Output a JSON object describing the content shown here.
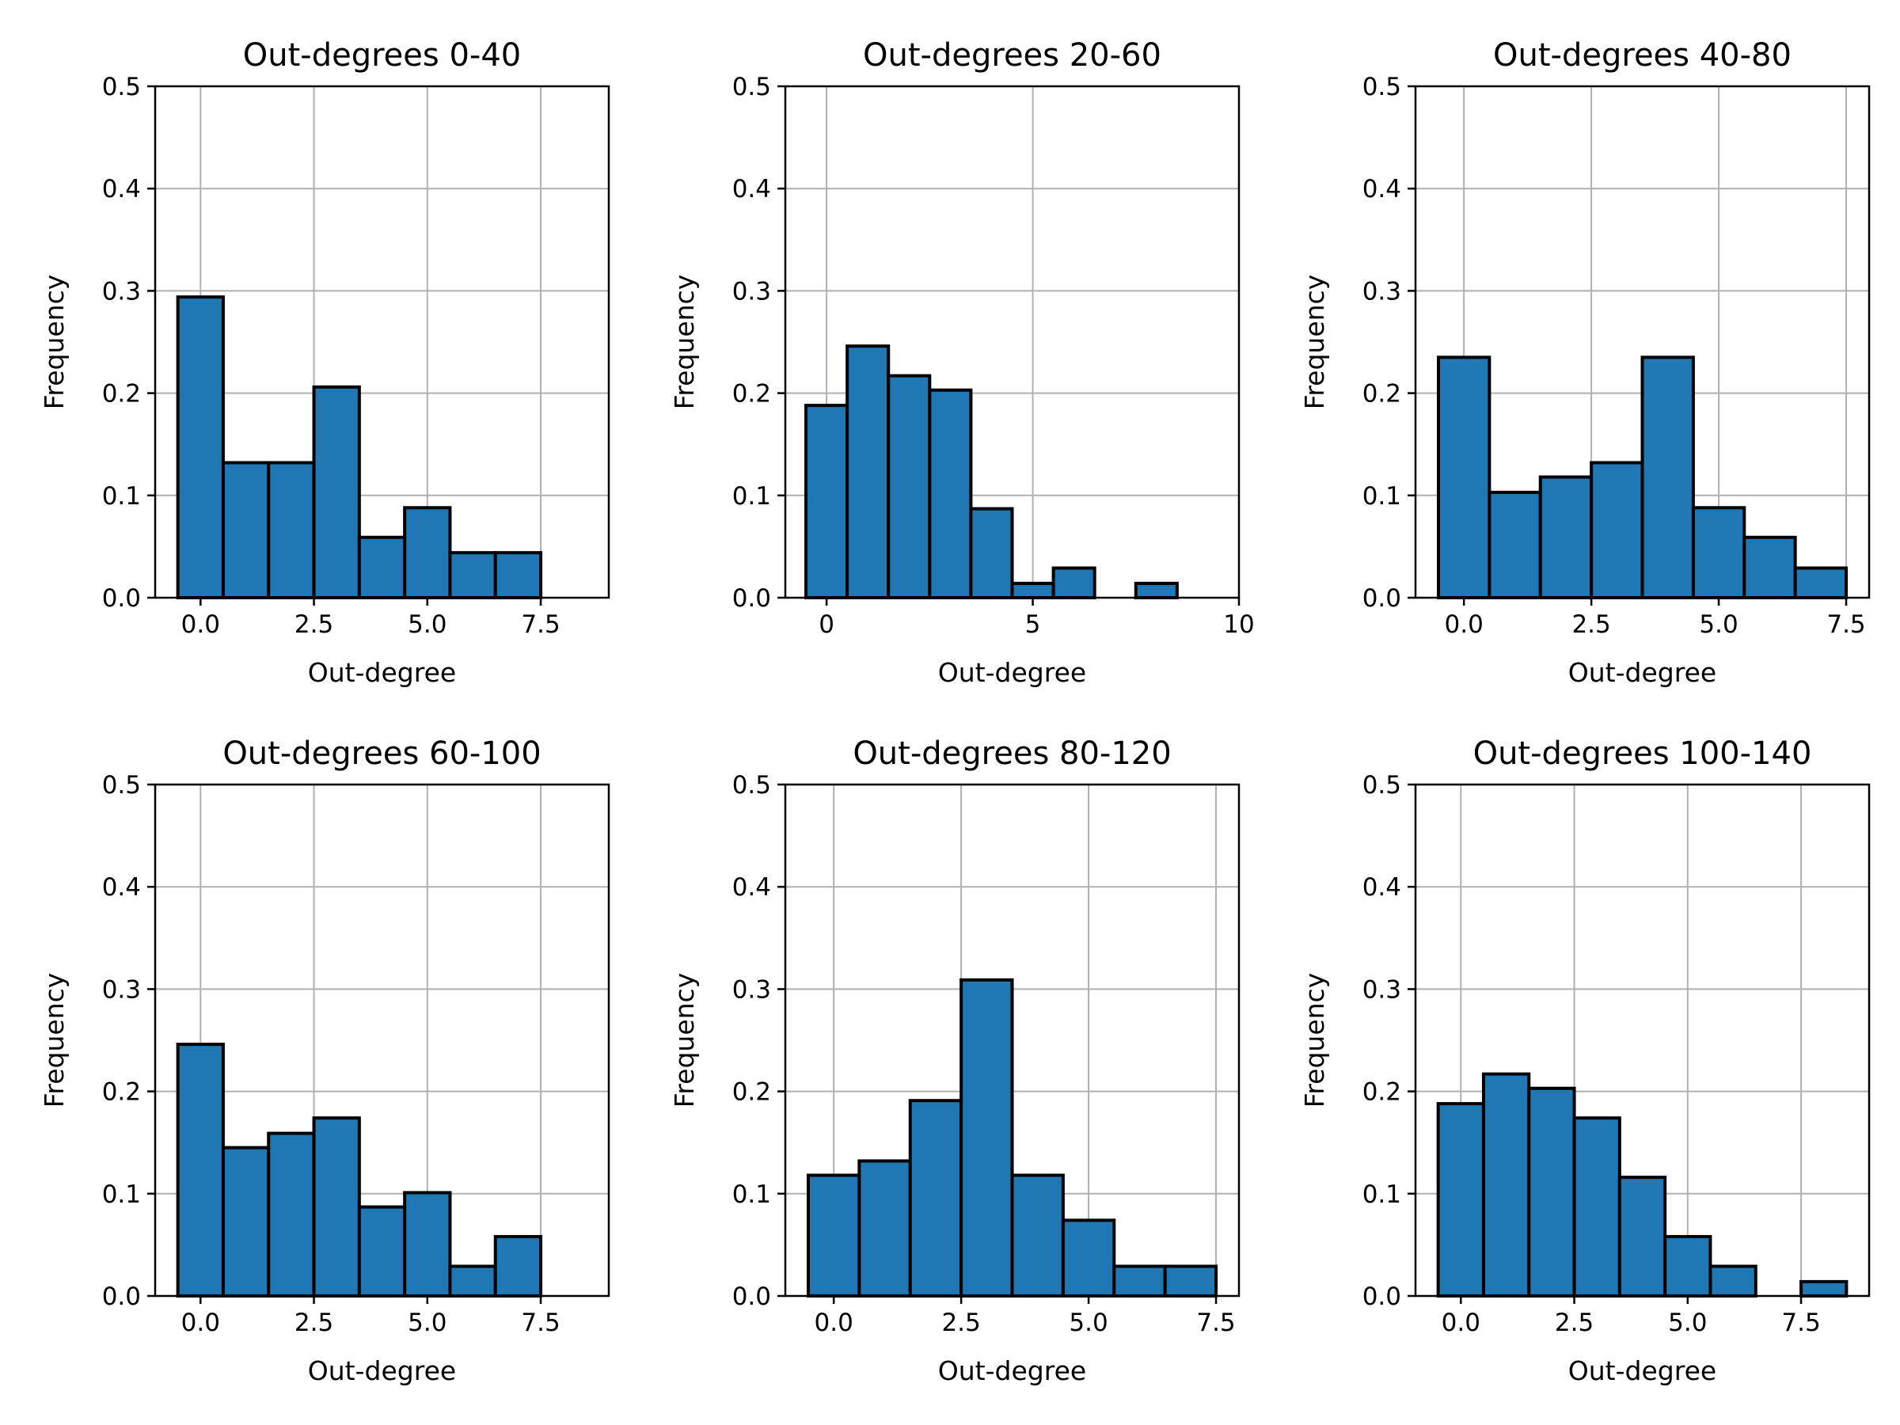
{
  "figure": {
    "bar_color": "#1f77b4",
    "edge_color": "#000000",
    "grid_color": "#b0b0b0"
  },
  "chart_data": [
    {
      "type": "bar",
      "title": "Out-degrees 0-40",
      "xlabel": "Out-degree",
      "ylabel": "Frequency",
      "xlim": [
        -1.0,
        9.0
      ],
      "ylim": [
        0,
        0.5
      ],
      "xticks": [
        0.0,
        2.5,
        5.0,
        7.5
      ],
      "xtick_labels": [
        "0.0",
        "2.5",
        "5.0",
        "7.5"
      ],
      "yticks": [
        0.0,
        0.1,
        0.2,
        0.3,
        0.4,
        0.5
      ],
      "ytick_labels": [
        "0.0",
        "0.1",
        "0.2",
        "0.3",
        "0.4",
        "0.5"
      ],
      "grid": true,
      "bin_edges": [
        -0.5,
        0.5,
        1.5,
        2.5,
        3.5,
        4.5,
        5.5,
        6.5,
        7.5,
        8.5
      ],
      "values": [
        0.294,
        0.132,
        0.132,
        0.206,
        0.059,
        0.088,
        0.044,
        0.044,
        0.0
      ]
    },
    {
      "type": "bar",
      "title": "Out-degrees 20-60",
      "xlabel": "Out-degree",
      "ylabel": "Frequency",
      "xlim": [
        -1.0,
        10.0
      ],
      "ylim": [
        0,
        0.5
      ],
      "xticks": [
        0,
        5,
        10
      ],
      "xtick_labels": [
        "0",
        "5",
        "10"
      ],
      "yticks": [
        0.0,
        0.1,
        0.2,
        0.3,
        0.4,
        0.5
      ],
      "ytick_labels": [
        "0.0",
        "0.1",
        "0.2",
        "0.3",
        "0.4",
        "0.5"
      ],
      "grid": true,
      "bin_edges": [
        -0.5,
        0.5,
        1.5,
        2.5,
        3.5,
        4.5,
        5.5,
        6.5,
        7.5,
        8.5,
        9.5
      ],
      "values": [
        0.188,
        0.246,
        0.217,
        0.203,
        0.087,
        0.014,
        0.029,
        0.0,
        0.014,
        0.0
      ]
    },
    {
      "type": "bar",
      "title": "Out-degrees 40-80",
      "xlabel": "Out-degree",
      "ylabel": "Frequency",
      "xlim": [
        -0.95,
        7.95
      ],
      "ylim": [
        0,
        0.5
      ],
      "xticks": [
        0.0,
        2.5,
        5.0,
        7.5
      ],
      "xtick_labels": [
        "0.0",
        "2.5",
        "5.0",
        "7.5"
      ],
      "yticks": [
        0.0,
        0.1,
        0.2,
        0.3,
        0.4,
        0.5
      ],
      "ytick_labels": [
        "0.0",
        "0.1",
        "0.2",
        "0.3",
        "0.4",
        "0.5"
      ],
      "grid": true,
      "bin_edges": [
        -0.5,
        0.5,
        1.5,
        2.5,
        3.5,
        4.5,
        5.5,
        6.5,
        7.5
      ],
      "values": [
        0.235,
        0.103,
        0.118,
        0.132,
        0.235,
        0.088,
        0.059,
        0.029
      ]
    },
    {
      "type": "bar",
      "title": "Out-degrees 60-100",
      "xlabel": "Out-degree",
      "ylabel": "Frequency",
      "xlim": [
        -1.0,
        9.0
      ],
      "ylim": [
        0,
        0.5
      ],
      "xticks": [
        0.0,
        2.5,
        5.0,
        7.5
      ],
      "xtick_labels": [
        "0.0",
        "2.5",
        "5.0",
        "7.5"
      ],
      "yticks": [
        0.0,
        0.1,
        0.2,
        0.3,
        0.4,
        0.5
      ],
      "ytick_labels": [
        "0.0",
        "0.1",
        "0.2",
        "0.3",
        "0.4",
        "0.5"
      ],
      "grid": true,
      "bin_edges": [
        -0.5,
        0.5,
        1.5,
        2.5,
        3.5,
        4.5,
        5.5,
        6.5,
        7.5,
        8.5
      ],
      "values": [
        0.246,
        0.145,
        0.159,
        0.174,
        0.087,
        0.101,
        0.029,
        0.058,
        0.0
      ]
    },
    {
      "type": "bar",
      "title": "Out-degrees 80-120",
      "xlabel": "Out-degree",
      "ylabel": "Frequency",
      "xlim": [
        -0.95,
        7.95
      ],
      "ylim": [
        0,
        0.5
      ],
      "xticks": [
        0.0,
        2.5,
        5.0,
        7.5
      ],
      "xtick_labels": [
        "0.0",
        "2.5",
        "5.0",
        "7.5"
      ],
      "yticks": [
        0.0,
        0.1,
        0.2,
        0.3,
        0.4,
        0.5
      ],
      "ytick_labels": [
        "0.0",
        "0.1",
        "0.2",
        "0.3",
        "0.4",
        "0.5"
      ],
      "grid": true,
      "bin_edges": [
        -0.5,
        0.5,
        1.5,
        2.5,
        3.5,
        4.5,
        5.5,
        6.5,
        7.5
      ],
      "values": [
        0.118,
        0.132,
        0.191,
        0.309,
        0.118,
        0.074,
        0.029,
        0.029
      ]
    },
    {
      "type": "bar",
      "title": "Out-degrees 100-140",
      "xlabel": "Out-degree",
      "ylabel": "Frequency",
      "xlim": [
        -1.0,
        9.0
      ],
      "ylim": [
        0,
        0.5
      ],
      "xticks": [
        0.0,
        2.5,
        5.0,
        7.5
      ],
      "xtick_labels": [
        "0.0",
        "2.5",
        "5.0",
        "7.5"
      ],
      "yticks": [
        0.0,
        0.1,
        0.2,
        0.3,
        0.4,
        0.5
      ],
      "ytick_labels": [
        "0.0",
        "0.1",
        "0.2",
        "0.3",
        "0.4",
        "0.5"
      ],
      "grid": true,
      "bin_edges": [
        -0.5,
        0.5,
        1.5,
        2.5,
        3.5,
        4.5,
        5.5,
        6.5,
        7.5,
        8.5
      ],
      "values": [
        0.188,
        0.217,
        0.203,
        0.174,
        0.116,
        0.058,
        0.029,
        0.0,
        0.014
      ]
    }
  ]
}
